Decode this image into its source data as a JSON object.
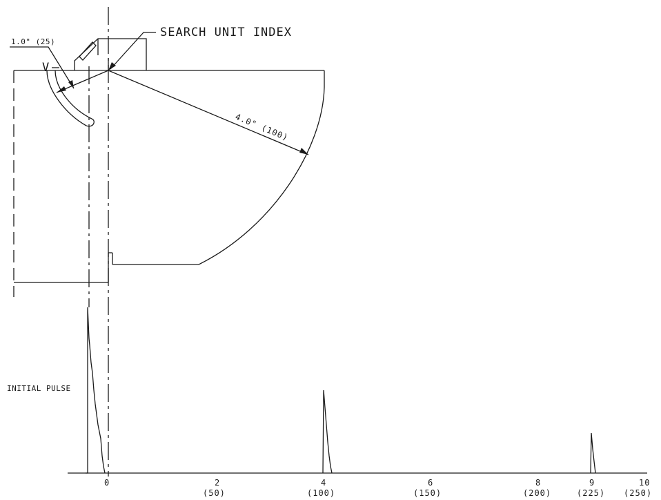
{
  "labels": {
    "search_unit_index": "SEARCH UNIT INDEX",
    "radius_small": "1.0\" (25)",
    "radius_large": "4.0\" (100)",
    "v_mark": "V",
    "initial_pulse": "INITIAL PULSE",
    "origin_tick": "0"
  },
  "scale_ticks": [
    {
      "inch": "2",
      "mm": "(50)"
    },
    {
      "inch": "4",
      "mm": "(100)"
    },
    {
      "inch": "6",
      "mm": "(150)"
    },
    {
      "inch": "8",
      "mm": "(200)"
    },
    {
      "inch": "9",
      "mm": "(225)"
    },
    {
      "inch": "10",
      "mm": "(250)"
    }
  ],
  "chart_data": {
    "type": "line",
    "title": "",
    "xlabel": "",
    "ylabel": "",
    "x_ticks_inch": [
      "0",
      "2",
      "4",
      "6",
      "8",
      "9",
      "10"
    ],
    "x_ticks_mm": [
      "(50)",
      "(100)",
      "(150)",
      "(200)",
      "(225)",
      "(250)"
    ],
    "xlim": [
      -0.4,
      10
    ],
    "series": [
      {
        "name": "INITIAL PULSE",
        "points": [
          [
            -0.4,
            1.0
          ],
          [
            -0.1,
            0.0
          ]
        ]
      },
      {
        "name": "",
        "points": [
          [
            4.0,
            0.5
          ],
          [
            4.2,
            0.0
          ]
        ]
      },
      {
        "name": "",
        "points": [
          [
            9.0,
            0.25
          ],
          [
            9.1,
            0.0
          ]
        ]
      }
    ]
  }
}
